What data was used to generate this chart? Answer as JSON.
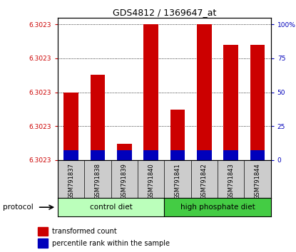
{
  "title": "GDS4812 / 1369647_at",
  "samples": [
    "GSM791837",
    "GSM791838",
    "GSM791839",
    "GSM791840",
    "GSM791841",
    "GSM791842",
    "GSM791843",
    "GSM791844"
  ],
  "red_bar_heights": [
    50,
    63,
    12,
    100,
    37,
    100,
    85,
    85
  ],
  "blue_bar_heights": [
    7,
    7,
    7,
    7,
    7,
    7,
    7,
    7
  ],
  "left_yticklabels": [
    "6.3023",
    "6.3023",
    "6.3023",
    "6.3023",
    "6.3023"
  ],
  "right_yticklabels": [
    "0",
    "25",
    "50",
    "75",
    "100%"
  ],
  "control_diet_label": "control diet",
  "high_phosphate_label": "high phosphate diet",
  "protocol_label": "protocol",
  "legend_red_label": "transformed count",
  "legend_blue_label": "percentile rank within the sample",
  "bar_width": 0.55,
  "red_color": "#CC0000",
  "blue_color": "#0000BB",
  "control_diet_color": "#BBFFBB",
  "high_phosphate_color": "#44CC44",
  "tick_label_color_left": "#CC0000",
  "tick_label_color_right": "#0000BB",
  "bar_area_bg": "#FFFFFF",
  "label_area_bg": "#CCCCCC"
}
